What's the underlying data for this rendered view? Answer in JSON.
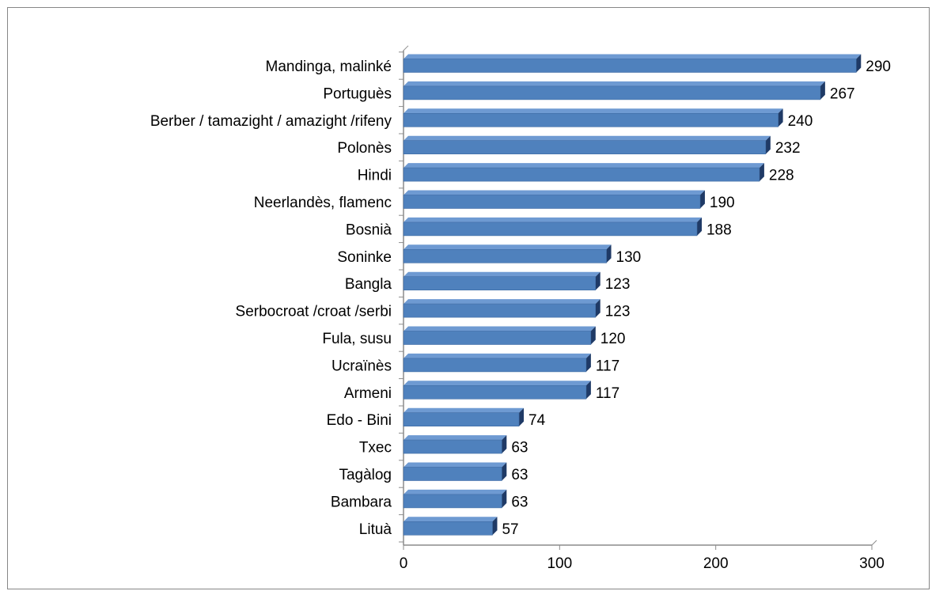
{
  "chart_data": {
    "type": "bar",
    "orientation": "horizontal",
    "style": "3d",
    "categories": [
      "Mandinga, malinké",
      "Portuguès",
      "Berber / tamazight / amazight /rifeny",
      "Polonès",
      "Hindi",
      "Neerlandès, flamenc",
      "Bosnià",
      "Soninke",
      "Bangla",
      "Serbocroat /croat /serbi",
      "Fula, susu",
      "Ucraïnès",
      "Armeni",
      "Edo - Bini",
      "Txec",
      "Tagàlog",
      "Bambara",
      "Lituà"
    ],
    "values": [
      290,
      267,
      240,
      232,
      228,
      190,
      188,
      130,
      123,
      123,
      120,
      117,
      117,
      74,
      63,
      63,
      63,
      57
    ],
    "title": "",
    "xlabel": "",
    "ylabel": "",
    "xlim": [
      0,
      300
    ],
    "xticks": [
      0,
      100,
      200,
      300
    ],
    "xtick_labels": [
      "0",
      "100",
      "200",
      "300"
    ],
    "data_labels": true,
    "grid": false,
    "legend": "none",
    "colors": {
      "bar_front": "#4F81BD",
      "bar_top": "#6E9AD2",
      "bar_side": "#1F3A66",
      "axis": "#8C8C8C"
    }
  }
}
